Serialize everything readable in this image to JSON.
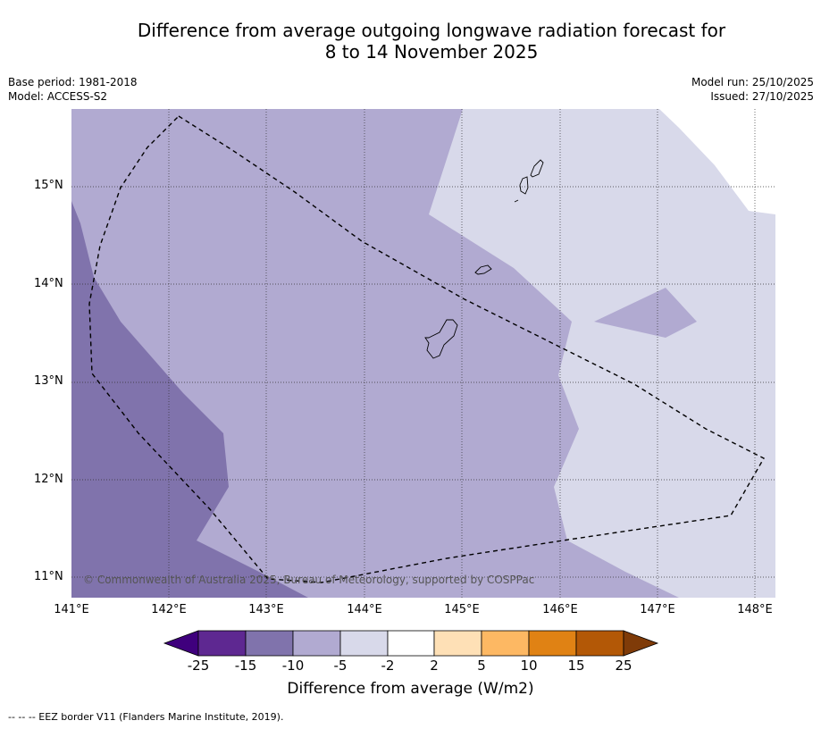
{
  "title_line1": "Difference from average outgoing longwave radiation forecast for",
  "title_line2": "8 to 14 November 2025",
  "base_period": "Base period: 1981-2018",
  "model": "Model: ACCESS-S2",
  "model_run": "Model run: 25/10/2025",
  "issued": "Issued: 27/10/2025",
  "copyright": "© Commonwealth of Australia 2025, Bureau of Meteorology, supported by COSPPac",
  "latitudes": [
    "15°N",
    "14°N",
    "13°N",
    "12°N",
    "11°N"
  ],
  "longitudes": [
    "141°E",
    "142°E",
    "143°E",
    "144°E",
    "145°E",
    "146°E",
    "147°E",
    "148°E"
  ],
  "colorbar": {
    "ticks": [
      "-25",
      "-15",
      "-10",
      "-5",
      "-2",
      "2",
      "5",
      "10",
      "15",
      "25"
    ],
    "colors": [
      "#3f007d",
      "#5e2891",
      "#8073ac",
      "#b1aad1",
      "#d8d9ea",
      "#ffffff",
      "#fee0b6",
      "#fdb863",
      "#e08214",
      "#b35806",
      "#7f3b08"
    ],
    "title": "Difference from average (W/m2)"
  },
  "legend_footnote": "--  --  -- EEZ border V11 (Flanders Marine Institute, 2019)."
}
